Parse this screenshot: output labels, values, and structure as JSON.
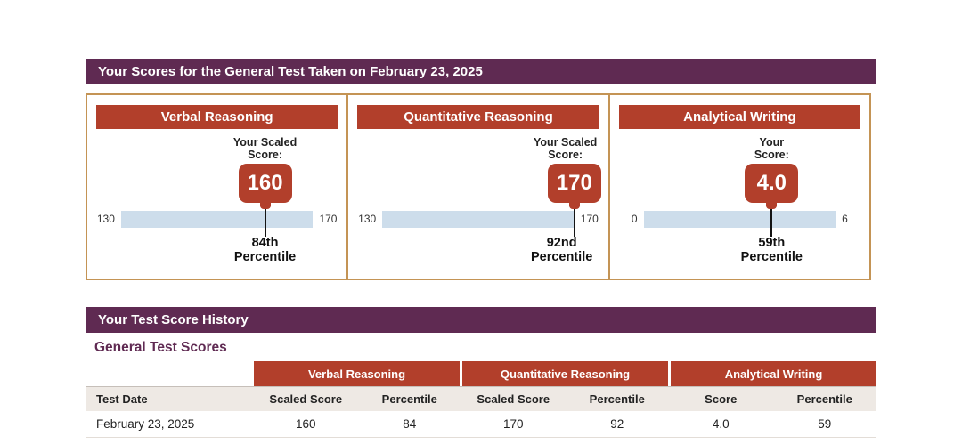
{
  "headers": {
    "scores_title": "Your Scores for the General Test Taken on February 23, 2025",
    "history_title": "Your Test Score History",
    "history_subtitle": "General Test Scores"
  },
  "panels": [
    {
      "title": "Verbal Reasoning",
      "score_label_line1": "Your Scaled",
      "score_label_line2": "Score:",
      "score": "160",
      "scale_min": "130",
      "scale_max": "170",
      "pointer_percent": 0.75,
      "percentile_line1": "84th",
      "percentile_line2": "Percentile"
    },
    {
      "title": "Quantitative Reasoning",
      "score_label_line1": "Your Scaled",
      "score_label_line2": "Score:",
      "score": "170",
      "scale_min": "130",
      "scale_max": "170",
      "pointer_percent": 1,
      "percentile_line1": "92nd",
      "percentile_line2": "Percentile"
    },
    {
      "title": "Analytical Writing",
      "score_label_line1": "Your",
      "score_label_line2": "Score:",
      "score": "4.0",
      "scale_min": "0",
      "scale_max": "6",
      "pointer_percent": 0.667,
      "percentile_line1": "59th",
      "percentile_line2": "Percentile"
    }
  ],
  "table": {
    "group_headers": [
      "Verbal Reasoning",
      "Quantitative Reasoning",
      "Analytical Writing"
    ],
    "columns": [
      "Test Date",
      "Scaled Score",
      "Percentile",
      "Scaled Score",
      "Percentile",
      "Score",
      "Percentile"
    ],
    "rows": [
      [
        "February 23, 2025",
        "160",
        "84",
        "170",
        "92",
        "4.0",
        "59"
      ]
    ]
  },
  "colors": {
    "accent_red": "#b23f2b",
    "brand_purple": "#5f2a52",
    "box_border_tan": "#c49455",
    "scale_bar_blue": "#cdddeb",
    "table_header_beige": "#eee9e4"
  }
}
